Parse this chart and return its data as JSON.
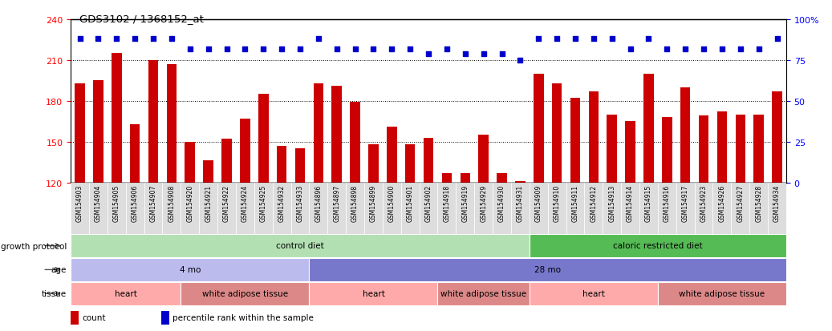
{
  "title": "GDS3102 / 1368152_at",
  "samples": [
    "GSM154903",
    "GSM154904",
    "GSM154905",
    "GSM154906",
    "GSM154907",
    "GSM154908",
    "GSM154920",
    "GSM154921",
    "GSM154922",
    "GSM154924",
    "GSM154925",
    "GSM154932",
    "GSM154933",
    "GSM154896",
    "GSM154897",
    "GSM154898",
    "GSM154899",
    "GSM154900",
    "GSM154901",
    "GSM154902",
    "GSM154918",
    "GSM154919",
    "GSM154929",
    "GSM154930",
    "GSM154931",
    "GSM154909",
    "GSM154910",
    "GSM154911",
    "GSM154912",
    "GSM154913",
    "GSM154914",
    "GSM154915",
    "GSM154916",
    "GSM154917",
    "GSM154923",
    "GSM154926",
    "GSM154927",
    "GSM154928",
    "GSM154934"
  ],
  "bar_values": [
    193,
    195,
    215,
    163,
    210,
    207,
    150,
    136,
    152,
    167,
    185,
    147,
    145,
    193,
    191,
    179,
    148,
    161,
    148,
    153,
    127,
    127,
    155,
    127,
    121,
    200,
    193,
    182,
    187,
    170,
    165,
    200,
    168,
    190,
    169,
    172,
    170,
    170,
    187
  ],
  "percentile_values": [
    88,
    88,
    88,
    88,
    88,
    88,
    82,
    82,
    82,
    82,
    82,
    82,
    82,
    88,
    82,
    82,
    82,
    82,
    82,
    79,
    82,
    79,
    79,
    79,
    75,
    88,
    88,
    88,
    88,
    88,
    82,
    88,
    82,
    82,
    82,
    82,
    82,
    82,
    88
  ],
  "bar_color": "#cc0000",
  "dot_color": "#0000cc",
  "ylim_left": [
    120,
    240
  ],
  "ylim_right": [
    0,
    100
  ],
  "yticks_left": [
    120,
    150,
    180,
    210,
    240
  ],
  "yticks_right": [
    0,
    25,
    50,
    75,
    100
  ],
  "grid_lines": [
    150,
    180,
    210
  ],
  "growth_protocol_groups": [
    {
      "label": "control diet",
      "start": 0,
      "end": 25,
      "color": "#b3e0b3"
    },
    {
      "label": "caloric restricted diet",
      "start": 25,
      "end": 39,
      "color": "#55bb55"
    }
  ],
  "age_groups": [
    {
      "label": "4 mo",
      "start": 0,
      "end": 13,
      "color": "#bbbbee"
    },
    {
      "label": "28 mo",
      "start": 13,
      "end": 39,
      "color": "#7777cc"
    }
  ],
  "tissue_groups": [
    {
      "label": "heart",
      "start": 0,
      "end": 6,
      "color": "#ffaaaa"
    },
    {
      "label": "white adipose tissue",
      "start": 6,
      "end": 13,
      "color": "#dd8888"
    },
    {
      "label": "heart",
      "start": 13,
      "end": 20,
      "color": "#ffaaaa"
    },
    {
      "label": "white adipose tissue",
      "start": 20,
      "end": 25,
      "color": "#dd8888"
    },
    {
      "label": "heart",
      "start": 25,
      "end": 32,
      "color": "#ffaaaa"
    },
    {
      "label": "white adipose tissue",
      "start": 32,
      "end": 39,
      "color": "#dd8888"
    }
  ],
  "row_labels": [
    "growth protocol",
    "age",
    "tissue"
  ],
  "legend_items": [
    {
      "color": "#cc0000",
      "label": "count"
    },
    {
      "color": "#0000cc",
      "label": "percentile rank within the sample"
    }
  ],
  "xtick_bg": "#dddddd"
}
